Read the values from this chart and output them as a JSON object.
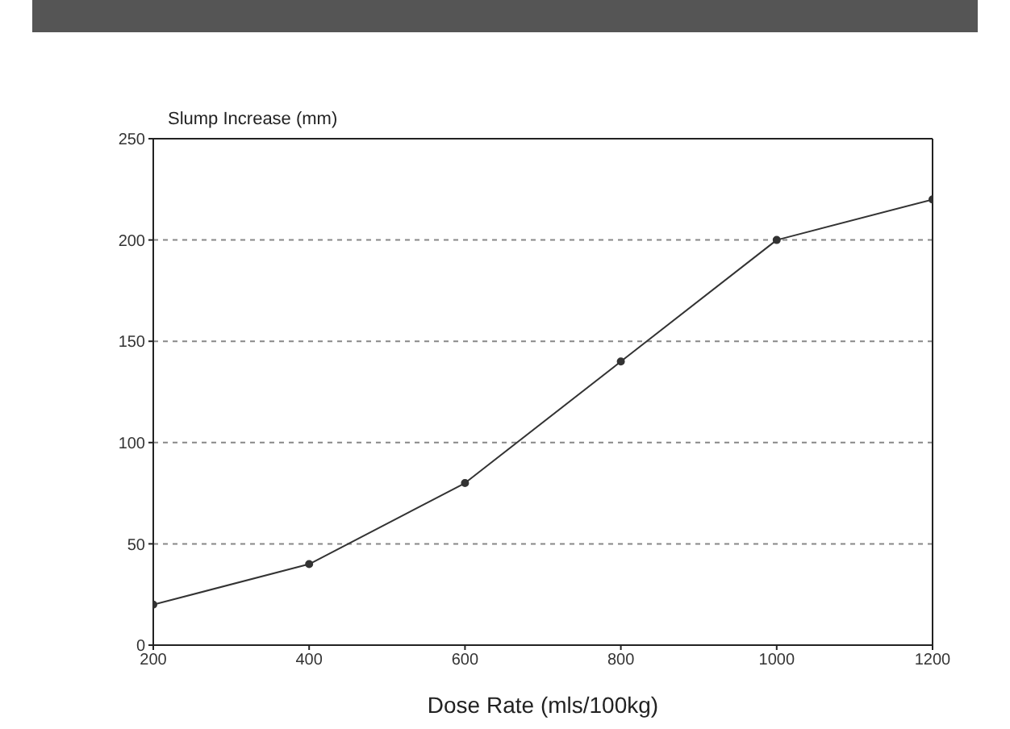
{
  "chart_data": {
    "type": "line",
    "xlabel": "Dose Rate (mls/100kg)",
    "ylabel": "Slump Increase (mm)",
    "x": [
      200,
      400,
      600,
      800,
      1000,
      1200
    ],
    "series": [
      {
        "color": "#333333",
        "values": [
          20,
          40,
          80,
          140,
          200,
          220
        ]
      }
    ],
    "xlim": [
      200,
      1200
    ],
    "xticks": [
      200,
      400,
      600,
      800,
      1000,
      1200
    ],
    "ylim": [
      0,
      250
    ],
    "yticks": [
      0,
      50,
      100,
      150,
      200,
      250
    ],
    "grid": "y",
    "marker": "circle",
    "line_style": "solid"
  }
}
